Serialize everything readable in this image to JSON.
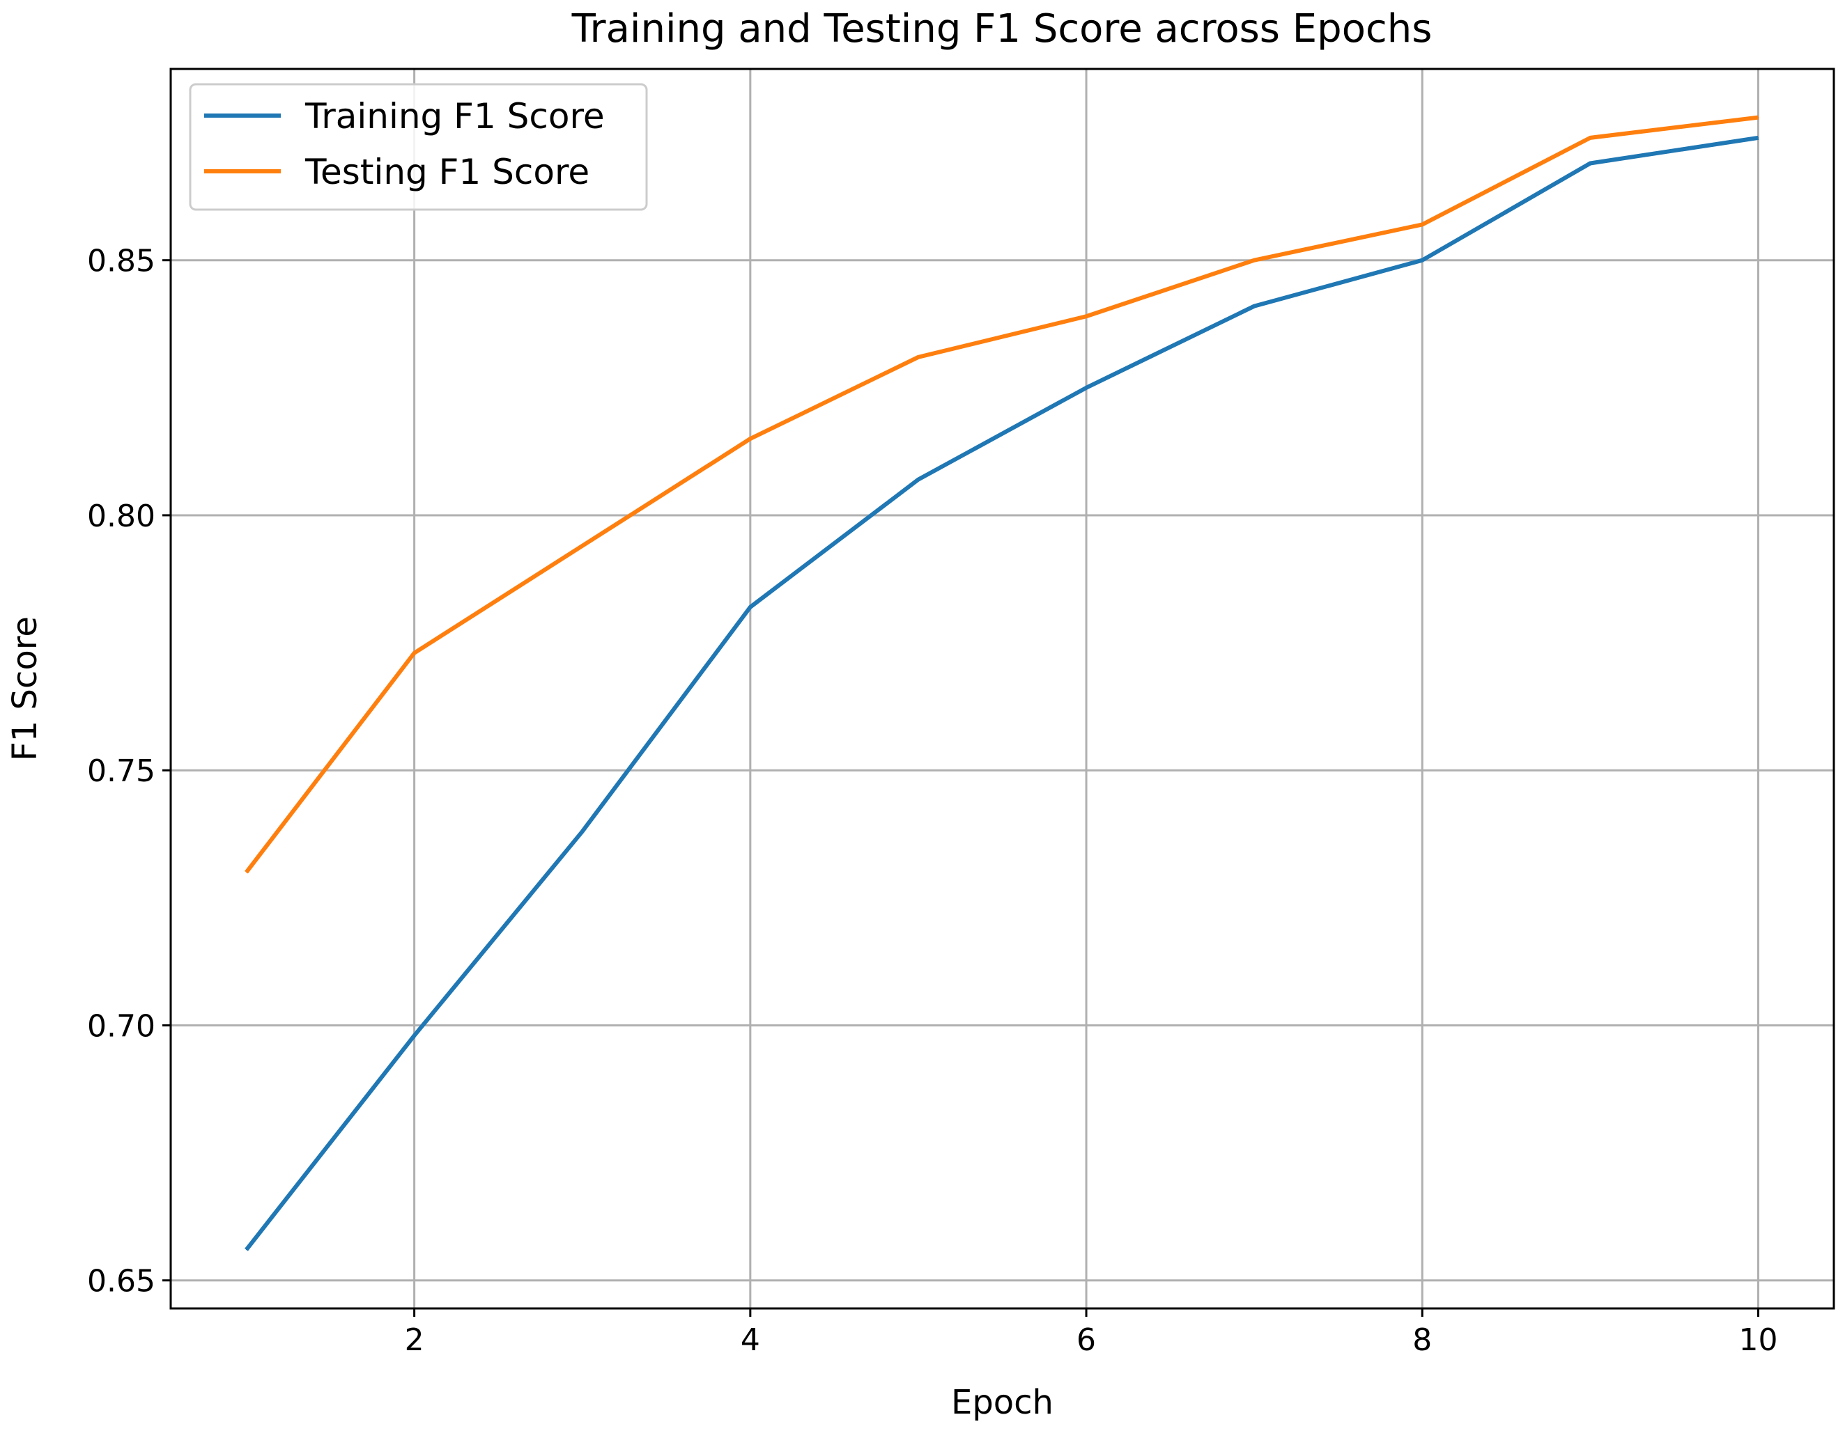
{
  "chart_data": {
    "type": "line",
    "title": "Training and Testing F1 Score across Epochs",
    "xlabel": "Epoch",
    "ylabel": "F1 Score",
    "x": [
      1,
      2,
      3,
      4,
      5,
      6,
      7,
      8,
      9,
      10
    ],
    "xlim": [
      0.55,
      10.45
    ],
    "ylim": [
      0.6445,
      0.8875
    ],
    "xticks": [
      2,
      4,
      6,
      8,
      10
    ],
    "xtick_labels": [
      "2",
      "4",
      "6",
      "8",
      "10"
    ],
    "yticks": [
      0.65,
      0.7,
      0.75,
      0.8,
      0.85
    ],
    "ytick_labels": [
      "0.65",
      "0.70",
      "0.75",
      "0.80",
      "0.85"
    ],
    "grid": true,
    "legend_position": "upper-left",
    "series": [
      {
        "name": "Training F1 Score",
        "color": "#1f77b4",
        "values": [
          0.656,
          0.698,
          0.738,
          0.782,
          0.807,
          0.825,
          0.841,
          0.85,
          0.869,
          0.874
        ]
      },
      {
        "name": "Testing F1 Score",
        "color": "#ff7f0e",
        "values": [
          0.73,
          0.773,
          0.794,
          0.815,
          0.831,
          0.839,
          0.85,
          0.857,
          0.874,
          0.878
        ]
      }
    ]
  }
}
